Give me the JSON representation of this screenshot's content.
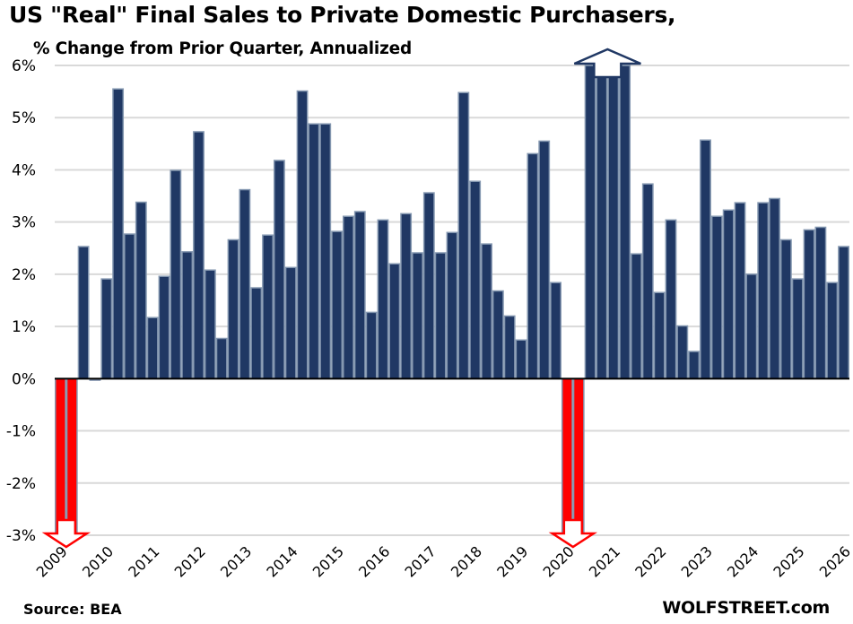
{
  "chart_data": {
    "type": "bar",
    "title": "US \"Real\" Final Sales to Private Domestic Purchasers,",
    "subtitle": "% Change from Prior Quarter, Annualized",
    "xlabel": "",
    "ylabel": "",
    "ylim": [
      -3,
      6
    ],
    "yticks": [
      "6%",
      "5%",
      "4%",
      "3%",
      "2%",
      "1%",
      "0%",
      "-1%",
      "-2%",
      "-3%"
    ],
    "ytick_values": [
      6,
      5,
      4,
      3,
      2,
      1,
      0,
      -1,
      -2,
      -3
    ],
    "xtick_labels": [
      "2009",
      "2010",
      "2011",
      "2012",
      "2013",
      "2014",
      "2015",
      "2016",
      "2017",
      "2018",
      "2019",
      "2020",
      "2021",
      "2022",
      "2023",
      "2024",
      "2025",
      "2026"
    ],
    "grid": true,
    "legend": "none",
    "frequency": "quarterly",
    "start_quarter": "2009 Q1",
    "values": [
      -3,
      -3,
      2.53,
      -0.03,
      1.91,
      5.55,
      2.77,
      3.38,
      1.17,
      1.96,
      3.99,
      2.43,
      4.73,
      2.08,
      0.77,
      2.66,
      3.62,
      1.74,
      2.75,
      4.18,
      2.13,
      5.51,
      4.88,
      4.88,
      2.82,
      3.11,
      3.2,
      1.27,
      3.04,
      2.2,
      3.16,
      2.41,
      3.56,
      2.41,
      2.8,
      5.48,
      3.78,
      2.58,
      1.68,
      1.2,
      0.74,
      4.31,
      4.55,
      1.84,
      -3,
      -3,
      6,
      6,
      6,
      6,
      2.39,
      3.73,
      1.65,
      3.04,
      1.01,
      0.52,
      4.57,
      3.11,
      3.23,
      3.37,
      2.0,
      3.37,
      3.45,
      2.66,
      1.91,
      2.85,
      2.9,
      1.84,
      2.53
    ],
    "clipped_below": [
      0,
      1,
      44,
      45
    ],
    "clipped_above": [
      46,
      47,
      48,
      49
    ],
    "annotations": [
      "down arrow: bars extend below -3%",
      "up arrow: bars extend above 6%"
    ],
    "colors": {
      "bar": "#203864",
      "bar_edge": "#8497b0",
      "negative_clipped": "#ff0000",
      "grid": "#d9d9d9",
      "axis": "#000000",
      "up_arrow_outline": "#203864"
    }
  },
  "footer": {
    "source": "Source: BEA",
    "brand": "WOLFSTREET.com"
  }
}
